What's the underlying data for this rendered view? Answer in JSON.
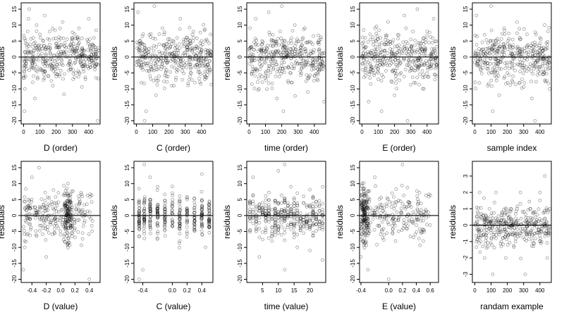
{
  "chart_data": [
    {
      "type": "scatter",
      "xlabel": "D (order)",
      "ylabel": "residuals",
      "xlim": [
        -15,
        470
      ],
      "ylim": [
        -21,
        17
      ],
      "xticks": [
        0,
        100,
        200,
        300,
        400
      ],
      "xtick_labels": [
        "0",
        "100",
        "200",
        "300",
        "400"
      ],
      "yticks": [
        -20,
        -15,
        -10,
        -5,
        0,
        5,
        10,
        15
      ],
      "ytick_labels": [
        "-20",
        "-15",
        "-10",
        "-5",
        "0",
        "5",
        "10",
        "15"
      ],
      "hline": 0,
      "x_kind": "index",
      "x_range": [
        0,
        460
      ],
      "y_spread": 6,
      "points": [
        [
          5,
          -17
        ],
        [
          8,
          -10
        ],
        [
          12,
          -6
        ],
        [
          15,
          -2
        ],
        [
          20,
          3
        ],
        [
          25,
          8
        ],
        [
          30,
          12
        ],
        [
          35,
          15
        ],
        [
          40,
          4
        ],
        [
          45,
          -3
        ],
        [
          60,
          6
        ],
        [
          70,
          -13
        ],
        [
          80,
          10
        ],
        [
          90,
          2
        ],
        [
          100,
          -4
        ],
        [
          120,
          5
        ],
        [
          130,
          13
        ],
        [
          140,
          -1
        ],
        [
          160,
          8
        ],
        [
          180,
          -9
        ],
        [
          200,
          3
        ],
        [
          220,
          -6
        ],
        [
          240,
          11
        ],
        [
          260,
          0
        ],
        [
          280,
          -2
        ],
        [
          300,
          6
        ],
        [
          320,
          -5
        ],
        [
          340,
          9
        ],
        [
          360,
          1
        ],
        [
          380,
          -7
        ],
        [
          400,
          12
        ],
        [
          420,
          4
        ],
        [
          440,
          -3
        ],
        [
          455,
          -20
        ],
        [
          460,
          2
        ]
      ]
    },
    {
      "type": "scatter",
      "xlabel": "C (order)",
      "ylabel": "residuals",
      "xlim": [
        -15,
        470
      ],
      "ylim": [
        -21,
        17
      ],
      "xticks": [
        0,
        100,
        200,
        300,
        400
      ],
      "xtick_labels": [
        "0",
        "100",
        "200",
        "300",
        "400"
      ],
      "yticks": [
        -20,
        -15,
        -10,
        -5,
        0,
        5,
        10,
        15
      ],
      "ytick_labels": [
        "-20",
        "-15",
        "-10",
        "-5",
        "0",
        "5",
        "10",
        "15"
      ],
      "hline": 0,
      "x_kind": "index",
      "x_range": [
        0,
        460
      ],
      "y_spread": 6,
      "points": [
        [
          10,
          14
        ],
        [
          20,
          5
        ],
        [
          30,
          -8
        ],
        [
          40,
          2
        ],
        [
          50,
          -20
        ],
        [
          60,
          -17
        ],
        [
          80,
          7
        ],
        [
          90,
          -3
        ],
        [
          110,
          16
        ],
        [
          120,
          -12
        ],
        [
          140,
          4
        ],
        [
          160,
          9
        ],
        [
          180,
          -5
        ],
        [
          200,
          1
        ],
        [
          230,
          -9
        ],
        [
          250,
          6
        ],
        [
          270,
          12
        ],
        [
          290,
          -2
        ],
        [
          310,
          3
        ],
        [
          330,
          -6
        ],
        [
          350,
          8
        ],
        [
          380,
          -1
        ],
        [
          400,
          5
        ],
        [
          420,
          -7
        ],
        [
          440,
          2
        ],
        [
          455,
          -4
        ]
      ]
    },
    {
      "type": "scatter",
      "xlabel": "time (order)",
      "ylabel": "residuals",
      "xlim": [
        -15,
        470
      ],
      "ylim": [
        -21,
        17
      ],
      "xticks": [
        0,
        100,
        200,
        300,
        400
      ],
      "xtick_labels": [
        "0",
        "100",
        "200",
        "300",
        "400"
      ],
      "yticks": [
        -20,
        -15,
        -10,
        -5,
        0,
        5,
        10,
        15
      ],
      "ytick_labels": [
        "-20",
        "-15",
        "-10",
        "-5",
        "0",
        "5",
        "10",
        "15"
      ],
      "hline": 0,
      "x_kind": "index",
      "x_range": [
        0,
        460
      ],
      "y_spread": 6,
      "points": [
        [
          5,
          9
        ],
        [
          20,
          -3
        ],
        [
          40,
          12
        ],
        [
          60,
          -10
        ],
        [
          80,
          5
        ],
        [
          100,
          -6
        ],
        [
          120,
          14
        ],
        [
          150,
          0
        ],
        [
          170,
          -13
        ],
        [
          190,
          8
        ],
        [
          200,
          16
        ],
        [
          210,
          -17
        ],
        [
          230,
          3
        ],
        [
          260,
          -8
        ],
        [
          280,
          10
        ],
        [
          300,
          -2
        ],
        [
          330,
          6
        ],
        [
          360,
          -11
        ],
        [
          390,
          4
        ],
        [
          420,
          -5
        ],
        [
          450,
          1
        ],
        [
          460,
          -14
        ]
      ]
    },
    {
      "type": "scatter",
      "xlabel": "E (order)",
      "ylabel": "residuals",
      "xlim": [
        -15,
        470
      ],
      "ylim": [
        -21,
        17
      ],
      "xticks": [
        0,
        100,
        200,
        300,
        400
      ],
      "xtick_labels": [
        "0",
        "100",
        "200",
        "300",
        "400"
      ],
      "yticks": [
        -20,
        -15,
        -10,
        -5,
        0,
        5,
        10,
        15
      ],
      "ytick_labels": [
        "-20",
        "-15",
        "-10",
        "-5",
        "0",
        "5",
        "10",
        "15"
      ],
      "hline": 0,
      "x_kind": "index",
      "x_range": [
        0,
        460
      ],
      "y_spread": 6,
      "points": [
        [
          5,
          -4
        ],
        [
          20,
          6
        ],
        [
          40,
          -14
        ],
        [
          60,
          2
        ],
        [
          80,
          9
        ],
        [
          100,
          -7
        ],
        [
          120,
          -17
        ],
        [
          140,
          4
        ],
        [
          160,
          11
        ],
        [
          180,
          -2
        ],
        [
          200,
          -12
        ],
        [
          220,
          7
        ],
        [
          240,
          -5
        ],
        [
          260,
          13
        ],
        [
          280,
          -20
        ],
        [
          300,
          1
        ],
        [
          320,
          -8
        ],
        [
          340,
          15
        ],
        [
          360,
          3
        ],
        [
          380,
          -10
        ],
        [
          400,
          8
        ],
        [
          420,
          -3
        ],
        [
          440,
          12
        ],
        [
          460,
          -6
        ]
      ]
    },
    {
      "type": "scatter",
      "xlabel": "sample index",
      "ylabel": "residuals",
      "xlim": [
        -15,
        470
      ],
      "ylim": [
        -21,
        17
      ],
      "xticks": [
        0,
        100,
        200,
        300,
        400
      ],
      "xtick_labels": [
        "0",
        "100",
        "200",
        "300",
        "400"
      ],
      "yticks": [
        -20,
        -15,
        -10,
        -5,
        0,
        5,
        10,
        15
      ],
      "ytick_labels": [
        "-20",
        "-15",
        "-10",
        "-5",
        "0",
        "5",
        "10",
        "15"
      ],
      "hline": 0,
      "x_kind": "index",
      "x_range": [
        0,
        460
      ],
      "y_spread": 6,
      "points": [
        [
          10,
          13
        ],
        [
          30,
          -3
        ],
        [
          60,
          7
        ],
        [
          80,
          -9
        ],
        [
          100,
          16
        ],
        [
          110,
          -17
        ],
        [
          130,
          4
        ],
        [
          150,
          -12
        ],
        [
          180,
          9
        ],
        [
          200,
          -5
        ],
        [
          230,
          1
        ],
        [
          260,
          11
        ],
        [
          290,
          -7
        ],
        [
          320,
          3
        ],
        [
          350,
          -13
        ],
        [
          370,
          -20
        ],
        [
          400,
          6
        ],
        [
          430,
          -2
        ],
        [
          450,
          8
        ],
        [
          460,
          -10
        ]
      ]
    },
    {
      "type": "scatter",
      "xlabel": "D (value)",
      "ylabel": "residuals",
      "xlim": [
        -0.55,
        0.55
      ],
      "ylim": [
        -21,
        17
      ],
      "xticks": [
        -0.4,
        -0.2,
        0,
        0.2,
        0.4
      ],
      "xtick_labels": [
        "-0.4",
        "-0.2",
        "0.0",
        "0.2",
        "0.4"
      ],
      "yticks": [
        -20,
        -15,
        -10,
        -5,
        0,
        5,
        10,
        15
      ],
      "ytick_labels": [
        "-20",
        "-15",
        "-10",
        "-5",
        "0",
        "5",
        "10",
        "15"
      ],
      "hline": 0,
      "x_kind": "value",
      "x_range": [
        -0.52,
        0.45
      ],
      "x_cluster": 0.1,
      "y_spread": 6,
      "points": [
        [
          -0.52,
          -17
        ],
        [
          -0.5,
          -10
        ],
        [
          -0.45,
          5
        ],
        [
          -0.4,
          12
        ],
        [
          -0.3,
          15
        ],
        [
          -0.2,
          -13
        ],
        [
          -0.1,
          8
        ],
        [
          0.0,
          -6
        ],
        [
          0.05,
          3
        ],
        [
          0.1,
          -9
        ],
        [
          0.1,
          10
        ],
        [
          0.2,
          -4
        ],
        [
          0.3,
          6
        ],
        [
          0.4,
          -20
        ],
        [
          0.42,
          -1
        ]
      ]
    },
    {
      "type": "scatter",
      "xlabel": "C (value)",
      "ylabel": "residuals",
      "xlim": [
        -0.52,
        0.55
      ],
      "ylim": [
        -21,
        17
      ],
      "xticks": [
        -0.4,
        0,
        0.2,
        0.4
      ],
      "xtick_labels": [
        "-0.4",
        "0.0",
        "0.2",
        "0.4"
      ],
      "yticks": [
        -20,
        -15,
        -10,
        -5,
        0,
        5,
        10,
        15
      ],
      "ytick_labels": [
        "-20",
        "-15",
        "-10",
        "-5",
        "0",
        "5",
        "10",
        "15"
      ],
      "hline": 0,
      "x_kind": "columns",
      "x_cols": [
        -0.45,
        -0.38,
        -0.3,
        -0.2,
        -0.1,
        0.0,
        0.1,
        0.2,
        0.3,
        0.4,
        0.5
      ],
      "y_spread": 5,
      "points": [
        [
          -0.45,
          -20
        ],
        [
          -0.4,
          -17
        ],
        [
          -0.38,
          16
        ],
        [
          -0.3,
          12
        ],
        [
          -0.2,
          9
        ],
        [
          0.0,
          7
        ],
        [
          0.1,
          -8
        ],
        [
          0.2,
          5
        ],
        [
          0.4,
          13
        ],
        [
          0.45,
          -10
        ]
      ]
    },
    {
      "type": "scatter",
      "xlabel": "time (value)",
      "ylabel": "residuals",
      "xlim": [
        0,
        25
      ],
      "ylim": [
        -21,
        17
      ],
      "xticks": [
        5,
        10,
        15,
        20
      ],
      "xtick_labels": [
        "5",
        "10",
        "15",
        "20"
      ],
      "yticks": [
        -20,
        -15,
        -10,
        -5,
        0,
        5,
        10,
        15
      ],
      "ytick_labels": [
        "-20",
        "-15",
        "-10",
        "-5",
        "0",
        "5",
        "10",
        "15"
      ],
      "hline": 0,
      "x_kind": "columns",
      "x_cols": [
        1,
        2,
        3,
        4,
        5,
        6,
        7,
        8,
        9,
        10,
        11,
        12,
        13,
        14,
        15,
        16,
        17,
        18,
        19,
        20,
        21,
        22,
        23,
        24
      ],
      "y_spread": 5,
      "points": [
        [
          2,
          12
        ],
        [
          4,
          -13
        ],
        [
          8,
          -8
        ],
        [
          10,
          14
        ],
        [
          12,
          16
        ],
        [
          12,
          -17
        ],
        [
          14,
          9
        ],
        [
          16,
          -10
        ],
        [
          18,
          6
        ],
        [
          20,
          -11
        ],
        [
          24,
          -14
        ],
        [
          24,
          9
        ]
      ]
    },
    {
      "type": "scatter",
      "xlabel": "E (value)",
      "ylabel": "residuals",
      "xlim": [
        -0.42,
        0.72
      ],
      "ylim": [
        -21,
        17
      ],
      "xticks": [
        -0.4,
        0,
        0.2,
        0.4,
        0.6
      ],
      "xtick_labels": [
        "-0.4",
        "0.0",
        "0.2",
        "0.4",
        "0.6"
      ],
      "yticks": [
        -20,
        -15,
        -10,
        -5,
        0,
        5,
        10,
        15
      ],
      "ytick_labels": [
        "-20",
        "-15",
        "-10",
        "-5",
        "0",
        "5",
        "10",
        "15"
      ],
      "hline": 0,
      "x_kind": "value",
      "x_range": [
        -0.4,
        0.62
      ],
      "x_cluster": -0.35,
      "y_spread": 6,
      "points": [
        [
          -0.4,
          -13
        ],
        [
          -0.38,
          10
        ],
        [
          -0.3,
          -17
        ],
        [
          -0.2,
          12
        ],
        [
          -0.1,
          -5
        ],
        [
          0.0,
          -20
        ],
        [
          0.05,
          7
        ],
        [
          0.1,
          -8
        ],
        [
          0.2,
          16
        ],
        [
          0.3,
          4
        ],
        [
          0.4,
          -3
        ],
        [
          0.5,
          -8
        ],
        [
          0.6,
          -3
        ]
      ]
    },
    {
      "type": "scatter",
      "xlabel": "randam example",
      "ylabel": "residuals",
      "xlim": [
        -15,
        470
      ],
      "ylim": [
        -3.5,
        3.9
      ],
      "xticks": [
        0,
        100,
        200,
        300,
        400
      ],
      "xtick_labels": [
        "0",
        "100",
        "200",
        "300",
        "400"
      ],
      "yticks": [
        -3,
        -2,
        -1,
        0,
        1,
        2,
        3
      ],
      "ytick_labels": [
        "-3",
        "-2",
        "-1",
        "0",
        "1",
        "2",
        "3"
      ],
      "hline": 0,
      "x_kind": "index",
      "x_range": [
        0,
        460
      ],
      "y_spread": 1,
      "points": [
        [
          10,
          -1
        ],
        [
          30,
          2
        ],
        [
          60,
          -2
        ],
        [
          90,
          1
        ],
        [
          110,
          -3
        ],
        [
          130,
          2
        ],
        [
          160,
          0
        ],
        [
          190,
          -2
        ],
        [
          220,
          1
        ],
        [
          250,
          -1
        ],
        [
          280,
          2
        ],
        [
          310,
          -3
        ],
        [
          340,
          1
        ],
        [
          370,
          0
        ],
        [
          400,
          2
        ],
        [
          430,
          3
        ],
        [
          445,
          -2
        ],
        [
          460,
          1
        ]
      ]
    }
  ]
}
